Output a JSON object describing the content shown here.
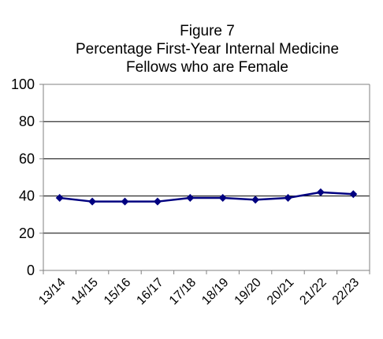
{
  "title": {
    "line1": "Figure 7",
    "line2": "Percentage First-Year Internal Medicine",
    "line3": "Fellows who are Female"
  },
  "chart_data": {
    "type": "line",
    "title": "Figure 7 Percentage First-Year Internal Medicine Fellows who are Female",
    "categories": [
      "13/14",
      "14/15",
      "15/16",
      "16/17",
      "17/18",
      "18/19",
      "19/20",
      "20/21",
      "21/22",
      "22/23"
    ],
    "series": [
      {
        "values": [
          39,
          37,
          37,
          37,
          39,
          39,
          38,
          39,
          42,
          41
        ]
      }
    ],
    "ylim": [
      0,
      100
    ],
    "yticks": [
      0,
      20,
      40,
      60,
      80,
      100
    ],
    "grid": true,
    "legend": "none",
    "colors": {
      "line": "#000080",
      "marker": "#000080",
      "grid": "#000000",
      "axis": "#808080"
    }
  }
}
